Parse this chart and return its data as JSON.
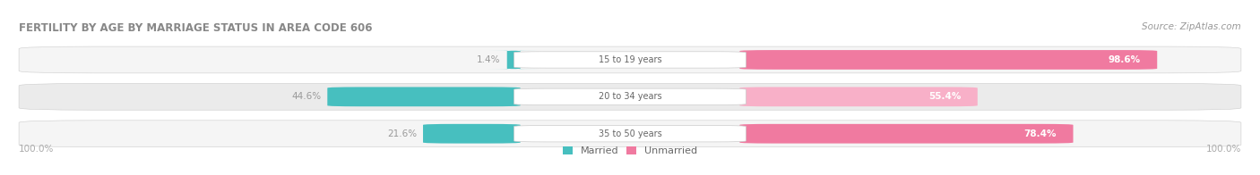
{
  "title": "FERTILITY BY AGE BY MARRIAGE STATUS IN AREA CODE 606",
  "source": "Source: ZipAtlas.com",
  "categories": [
    "15 to 19 years",
    "20 to 34 years",
    "35 to 50 years"
  ],
  "married_pct": [
    1.4,
    44.6,
    21.6
  ],
  "unmarried_pct": [
    98.6,
    55.4,
    78.4
  ],
  "married_color": "#47bfbf",
  "unmarried_color": "#f07aa0",
  "unmarried_color_light": "#f8b0c8",
  "title_color": "#888888",
  "source_color": "#999999",
  "pct_label_color_outside": "#999999",
  "pct_label_color_inside_white": "#ffffff",
  "pct_label_color_inside_dark": "#888888",
  "center_label_color": "#666666",
  "axis_label_color": "#aaaaaa",
  "legend_married": "Married",
  "legend_unmarried": "Unmarried",
  "row_bg_even": "#f5f5f5",
  "row_bg_odd": "#ebebeb",
  "figsize": [
    14.06,
    1.96
  ],
  "dpi": 100
}
